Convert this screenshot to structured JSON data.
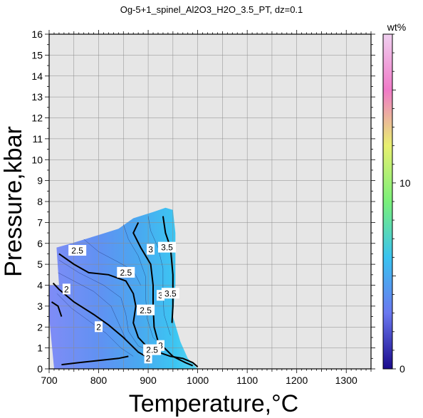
{
  "chart_data": {
    "type": "heatmap",
    "title": "Og-5+1_spinel_Al2O3_H2O_3.5_PT, dz=0.1",
    "xlabel": "Temperature,°C",
    "ylabel": "Pressure,kbar",
    "xlim": [
      700,
      1350
    ],
    "ylim": [
      0,
      16
    ],
    "x_ticks": [
      700,
      800,
      900,
      1000,
      1100,
      1200,
      1300
    ],
    "y_ticks": [
      0,
      1,
      2,
      3,
      4,
      5,
      6,
      7,
      8,
      9,
      10,
      11,
      12,
      13,
      14,
      15,
      16
    ],
    "grid": true,
    "background_color": "#e6e6e6",
    "colorbar": {
      "label": "wt%",
      "range": [
        0,
        18
      ],
      "ticks": [
        0,
        10
      ],
      "colors": [
        "#1a0a8c",
        "#6a78f0",
        "#3ac3f0",
        "#7af07a",
        "#e8f070",
        "#f07ac8",
        "#f0d0f0"
      ]
    },
    "contour_levels": [
      {
        "value": 2,
        "label": "2",
        "bold": true
      },
      {
        "value": 2.5,
        "label": "2.5",
        "bold": true
      },
      {
        "value": 3,
        "label": "3",
        "bold": true
      },
      {
        "value": 3.5,
        "label": "3.5",
        "bold": true
      }
    ],
    "boundary_outline": [
      [
        710,
        0
      ],
      [
        700,
        2.5
      ],
      [
        700,
        4.0
      ],
      [
        720,
        4.0
      ],
      [
        715,
        5.8
      ],
      [
        745,
        6.0
      ],
      [
        800,
        6.4
      ],
      [
        840,
        6.7
      ],
      [
        870,
        7.2
      ],
      [
        910,
        7.5
      ],
      [
        935,
        7.7
      ],
      [
        950,
        7.6
      ],
      [
        955,
        6.5
      ],
      [
        955,
        4.0
      ],
      [
        950,
        2.5
      ],
      [
        965,
        1.3
      ],
      [
        980,
        0.5
      ],
      [
        1000,
        0
      ]
    ],
    "contours": [
      {
        "value": 2,
        "label": "2",
        "points": [
          [
            725,
            0.2
          ],
          [
            760,
            0.3
          ],
          [
            800,
            0.4
          ],
          [
            840,
            0.5
          ],
          [
            860,
            0.6
          ]
        ],
        "label_at": [
          860,
          0.55
        ]
      },
      {
        "value": 2,
        "label": "2",
        "points": [
          [
            708,
            4.1
          ],
          [
            720,
            3.8
          ],
          [
            750,
            3.2
          ],
          [
            790,
            2.6
          ],
          [
            820,
            2.1
          ],
          [
            850,
            1.5
          ],
          [
            880,
            0.8
          ],
          [
            895,
            0.6
          ]
        ],
        "label_at": [
          800,
          2.0
        ]
      },
      {
        "value": 2,
        "label": "2",
        "points": [
          [
            705,
            3.2
          ],
          [
            718,
            3.0
          ],
          [
            725,
            2.5
          ]
        ],
        "label_at": [
          722,
          3.8
        ]
      },
      {
        "value": 2.5,
        "label": "2.5",
        "points": [
          [
            720,
            5.5
          ],
          [
            750,
            5.0
          ],
          [
            780,
            4.6
          ],
          [
            820,
            4.5
          ],
          [
            855,
            4.2
          ],
          [
            870,
            3.6
          ],
          [
            875,
            3.0
          ],
          [
            870,
            2.2
          ],
          [
            880,
            1.5
          ],
          [
            900,
            1.0
          ],
          [
            920,
            0.8
          ],
          [
            945,
            0.6
          ],
          [
            970,
            0.5
          ],
          [
            990,
            0.3
          ],
          [
            1000,
            0.1
          ]
        ],
        "label_at": [
          760,
          5.7
        ]
      },
      {
        "value": 3,
        "label": "3",
        "points": [
          [
            880,
            7.0
          ],
          [
            870,
            6.5
          ],
          [
            885,
            5.8
          ],
          [
            905,
            5.0
          ],
          [
            910,
            4.0
          ],
          [
            910,
            3.0
          ],
          [
            912,
            2.0
          ],
          [
            920,
            1.3
          ],
          [
            950,
            0.6
          ],
          [
            975,
            0.3
          ],
          [
            990,
            0.15
          ]
        ],
        "label_at": [
          905,
          5.7
        ]
      },
      {
        "value": 3.5,
        "label": "3.5",
        "points": [
          [
            930,
            7.3
          ],
          [
            935,
            6.5
          ],
          [
            945,
            5.8
          ],
          [
            950,
            4.5
          ],
          [
            950,
            3.0
          ],
          [
            948,
            2.2
          ]
        ],
        "label_at": [
          938,
          5.8
        ]
      }
    ],
    "contour_label_positions": [
      {
        "label": "2.5",
        "x": 757,
        "y": 5.65
      },
      {
        "label": "3",
        "x": 905,
        "y": 5.7
      },
      {
        "label": "3.5",
        "x": 938,
        "y": 5.8
      },
      {
        "label": "2.5",
        "x": 855,
        "y": 4.6
      },
      {
        "label": "2",
        "x": 735,
        "y": 3.8
      },
      {
        "label": "3",
        "x": 925,
        "y": 3.5
      },
      {
        "label": "3.5",
        "x": 945,
        "y": 3.6
      },
      {
        "label": "2.5",
        "x": 895,
        "y": 2.8
      },
      {
        "label": "2",
        "x": 800,
        "y": 2.0
      },
      {
        "label": "3",
        "x": 925,
        "y": 1.1
      },
      {
        "label": "2.5",
        "x": 908,
        "y": 0.9
      },
      {
        "label": "2",
        "x": 900,
        "y": 0.5
      }
    ]
  }
}
